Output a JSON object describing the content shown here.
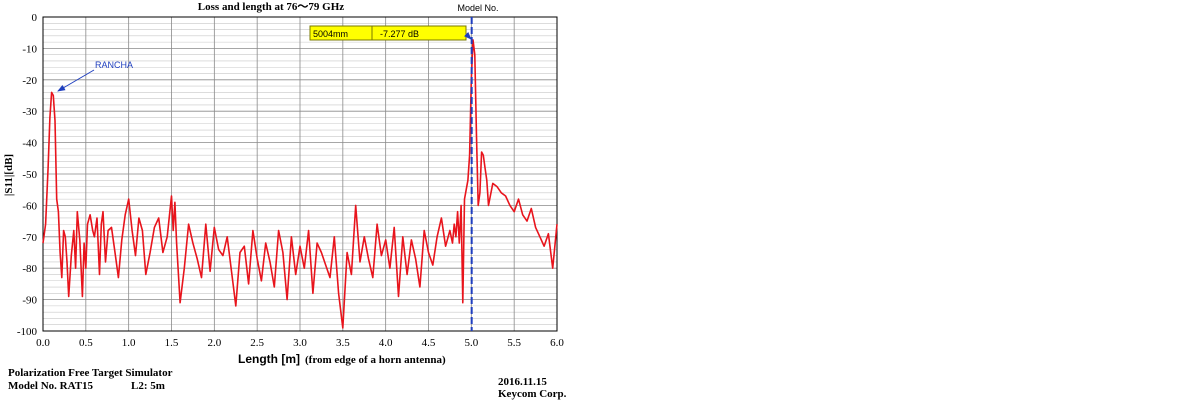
{
  "chart_data": {
    "type": "line",
    "title": "Loss and length at 76～79 GHz",
    "ylabel": "|S11|[dB]",
    "xlabel_main": "Length [m]",
    "xlabel_note": "(from edge of a horn antenna)",
    "xlim": [
      0,
      6
    ],
    "ylim": [
      -100,
      0
    ],
    "xticks": [
      "0.0",
      "0.5",
      "1.0",
      "1.5",
      "2.0",
      "2.5",
      "3.0",
      "3.5",
      "4.0",
      "4.5",
      "5.0",
      "5.5",
      "6.0"
    ],
    "yticks": [
      "0",
      "-10",
      "-20",
      "-30",
      "-40",
      "-50",
      "-60",
      "-70",
      "-80",
      "-90",
      "-100"
    ],
    "grid": true,
    "series_color": "#e8141c",
    "marker_color": "#1f3fbf",
    "series": [
      {
        "x": [
          0.0,
          0.03,
          0.06,
          0.08,
          0.1,
          0.12,
          0.14,
          0.16,
          0.18,
          0.2,
          0.22,
          0.24,
          0.26,
          0.28,
          0.3,
          0.33,
          0.36,
          0.38,
          0.4,
          0.43,
          0.46,
          0.48,
          0.5,
          0.52,
          0.55,
          0.58,
          0.6,
          0.63,
          0.66,
          0.68,
          0.7,
          0.73,
          0.76,
          0.8,
          0.84,
          0.88,
          0.92,
          0.96,
          1.0,
          1.04,
          1.08,
          1.12,
          1.16,
          1.2,
          1.25,
          1.3,
          1.35,
          1.4,
          1.45,
          1.5,
          1.52,
          1.54,
          1.56,
          1.6,
          1.65,
          1.7,
          1.75,
          1.8,
          1.85,
          1.9,
          1.95,
          2.0,
          2.05,
          2.1,
          2.15,
          2.2,
          2.25,
          2.3,
          2.35,
          2.4,
          2.45,
          2.5,
          2.55,
          2.6,
          2.65,
          2.7,
          2.75,
          2.8,
          2.85,
          2.9,
          2.95,
          3.0,
          3.05,
          3.1,
          3.15,
          3.2,
          3.25,
          3.3,
          3.35,
          3.4,
          3.45,
          3.5,
          3.55,
          3.6,
          3.65,
          3.7,
          3.75,
          3.8,
          3.85,
          3.9,
          3.95,
          4.0,
          4.05,
          4.1,
          4.15,
          4.2,
          4.25,
          4.3,
          4.35,
          4.4,
          4.45,
          4.5,
          4.55,
          4.6,
          4.65,
          4.7,
          4.75,
          4.78,
          4.8,
          4.82,
          4.84,
          4.86,
          4.88,
          4.9,
          4.92,
          4.94,
          4.96,
          4.98,
          5.0,
          5.02,
          5.04,
          5.06,
          5.08,
          5.1,
          5.12,
          5.14,
          5.16,
          5.18,
          5.2,
          5.25,
          5.3,
          5.35,
          5.4,
          5.45,
          5.5,
          5.55,
          5.6,
          5.65,
          5.7,
          5.75,
          5.8,
          5.85,
          5.9,
          5.95,
          6.0
        ],
        "values": [
          -72,
          -66,
          -48,
          -32,
          -24,
          -25,
          -33,
          -58,
          -62,
          -75,
          -83,
          -68,
          -70,
          -78,
          -89,
          -76,
          -68,
          -80,
          -62,
          -71,
          -89,
          -72,
          -80,
          -66,
          -63,
          -68,
          -70,
          -64,
          -82,
          -66,
          -62,
          -78,
          -68,
          -67,
          -75,
          -83,
          -71,
          -63,
          -58,
          -68,
          -76,
          -64,
          -68,
          -82,
          -75,
          -67,
          -64,
          -75,
          -70,
          -57,
          -68,
          -59,
          -72,
          -91,
          -80,
          -66,
          -72,
          -77,
          -83,
          -66,
          -81,
          -67,
          -74,
          -76,
          -70,
          -81,
          -92,
          -75,
          -73,
          -85,
          -68,
          -77,
          -84,
          -72,
          -78,
          -86,
          -68,
          -75,
          -90,
          -70,
          -82,
          -73,
          -80,
          -68,
          -88,
          -72,
          -75,
          -79,
          -83,
          -70,
          -88,
          -99,
          -75,
          -82,
          -60,
          -78,
          -70,
          -77,
          -83,
          -66,
          -76,
          -71,
          -80,
          -67,
          -89,
          -70,
          -82,
          -71,
          -77,
          -86,
          -68,
          -75,
          -79,
          -70,
          -64,
          -73,
          -68,
          -72,
          -66,
          -70,
          -62,
          -72,
          -60,
          -91,
          -58,
          -55,
          -52,
          -44,
          -20,
          -7.3,
          -12,
          -38,
          -60,
          -56,
          -43,
          -44,
          -48,
          -52,
          -60,
          -53,
          -54,
          -56,
          -57,
          -60,
          -62,
          -58,
          -63,
          -65,
          -61,
          -67,
          -70,
          -73,
          -69,
          -80,
          -66
        ]
      }
    ],
    "annotations": [
      {
        "text": "RANCHA",
        "x": 0.12,
        "y": -24
      },
      {
        "text": "Model No.",
        "x": 5.004,
        "y": -7.277
      }
    ],
    "readout": {
      "length": "5004mm",
      "value": "-7.277  dB"
    }
  },
  "footer": {
    "line1": "Polarization  Free Target Simulator",
    "line2_model": "Model No. RAT15",
    "line2_l2": "L2: 5m",
    "date": "2016.11.15",
    "company": "Keycom Corp."
  }
}
